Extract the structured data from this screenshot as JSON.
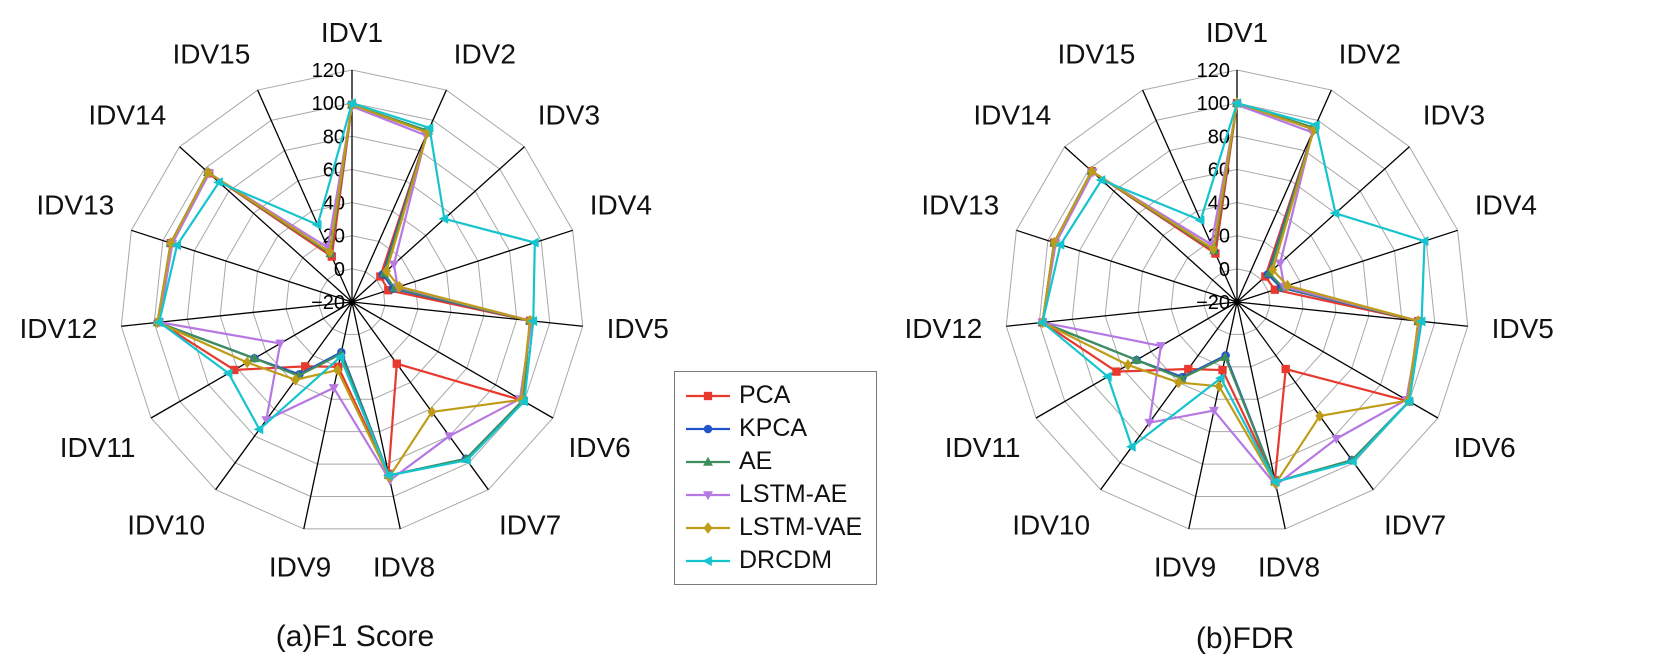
{
  "figure": {
    "background": "#ffffff",
    "grid_color": "#a8a8a8",
    "spoke_color": "#000000",
    "text_color": "#111111"
  },
  "legend": {
    "items": [
      {
        "label": "PCA",
        "marker": "square",
        "color": "#e8392f"
      },
      {
        "label": "KPCA",
        "marker": "circle",
        "color": "#2353c9"
      },
      {
        "label": "AE",
        "marker": "triangle-up",
        "color": "#3e8e5b"
      },
      {
        "label": "LSTM-AE",
        "marker": "triangle-down",
        "color": "#b678e2"
      },
      {
        "label": "LSTM-VAE",
        "marker": "diamond",
        "color": "#bf9c17"
      },
      {
        "label": "DRCDM",
        "marker": "triangle-left",
        "color": "#16c4ce"
      }
    ]
  },
  "chart_data": [
    {
      "type": "radar",
      "title": "(a)F1 Score",
      "categories": [
        "IDV1",
        "IDV2",
        "IDV3",
        "IDV4",
        "IDV5",
        "IDV6",
        "IDV7",
        "IDV8",
        "IDV9",
        "IDV10",
        "IDV11",
        "IDV12",
        "IDV13",
        "IDV14",
        "IDV15"
      ],
      "rmin": -20,
      "rmax": 120,
      "ticks": [
        120,
        100,
        80,
        60,
        40,
        20,
        0,
        -20
      ],
      "grid": true,
      "legend_position": "outside-right",
      "series": [
        {
          "name": "PCA",
          "marker": "square",
          "color": "#e8392f",
          "values": [
            99,
            92,
            3,
            3,
            88,
            99,
            26,
            86,
            20,
            28,
            62,
            97,
            95,
            96,
            10
          ]
        },
        {
          "name": "KPCA",
          "marker": "circle",
          "color": "#2353c9",
          "values": [
            99,
            92,
            5,
            6,
            88,
            99,
            97,
            87,
            11,
            34,
            48,
            98,
            95,
            97,
            12
          ]
        },
        {
          "name": "AE",
          "marker": "triangle-up",
          "color": "#3e8e5b",
          "values": [
            99,
            93,
            6,
            7,
            88,
            99,
            97,
            87,
            12,
            35,
            48,
            98,
            95,
            97,
            12
          ]
        },
        {
          "name": "LSTM-AE",
          "marker": "triangle-down",
          "color": "#b678e2",
          "values": [
            98,
            90,
            14,
            9,
            89,
            97,
            80,
            90,
            33,
            68,
            30,
            97,
            94,
            96,
            16
          ]
        },
        {
          "name": "LSTM-VAE",
          "marker": "diamond",
          "color": "#bf9c17",
          "values": [
            99,
            92,
            8,
            10,
            88,
            98,
            62,
            88,
            22,
            38,
            53,
            98,
            95,
            97,
            13
          ]
        },
        {
          "name": "DRCDM",
          "marker": "triangle-left",
          "color": "#16c4ce",
          "values": [
            100,
            95,
            55,
            96,
            90,
            100,
            98,
            87,
            14,
            75,
            66,
            97,
            91,
            88,
            31
          ]
        }
      ]
    },
    {
      "type": "radar",
      "title": "(b)FDR",
      "categories": [
        "IDV1",
        "IDV2",
        "IDV3",
        "IDV4",
        "IDV5",
        "IDV6",
        "IDV7",
        "IDV8",
        "IDV9",
        "IDV10",
        "IDV11",
        "IDV12",
        "IDV13",
        "IDV14",
        "IDV15"
      ],
      "rmin": -20,
      "rmax": 120,
      "ticks": [
        120,
        100,
        80,
        60,
        40,
        20,
        0,
        -20
      ],
      "grid": true,
      "legend_position": "outside-left",
      "series": [
        {
          "name": "PCA",
          "marker": "square",
          "color": "#e8392f",
          "values": [
            100,
            94,
            3,
            4,
            90,
            100,
            30,
            90,
            22,
            30,
            64,
            98,
            96,
            98,
            12
          ]
        },
        {
          "name": "KPCA",
          "marker": "circle",
          "color": "#2353c9",
          "values": [
            100,
            94,
            5,
            8,
            90,
            100,
            98,
            91,
            13,
            36,
            50,
            98,
            96,
            98,
            14
          ]
        },
        {
          "name": "AE",
          "marker": "triangle-up",
          "color": "#3e8e5b",
          "values": [
            100,
            95,
            6,
            9,
            90,
            100,
            98,
            91,
            14,
            37,
            50,
            98,
            96,
            98,
            14
          ]
        },
        {
          "name": "LSTM-AE",
          "marker": "triangle-down",
          "color": "#b678e2",
          "values": [
            99,
            92,
            15,
            10,
            91,
            98,
            82,
            93,
            47,
            70,
            33,
            98,
            95,
            97,
            18
          ]
        },
        {
          "name": "LSTM-VAE",
          "marker": "diamond",
          "color": "#bf9c17",
          "values": [
            100,
            94,
            9,
            12,
            90,
            99,
            65,
            92,
            32,
            40,
            56,
            98,
            96,
            98,
            15
          ]
        },
        {
          "name": "DRCDM",
          "marker": "triangle-left",
          "color": "#16c4ce",
          "values": [
            100,
            97,
            60,
            99,
            92,
            100,
            99,
            91,
            27,
            88,
            70,
            98,
            92,
            90,
            34
          ]
        }
      ]
    }
  ]
}
